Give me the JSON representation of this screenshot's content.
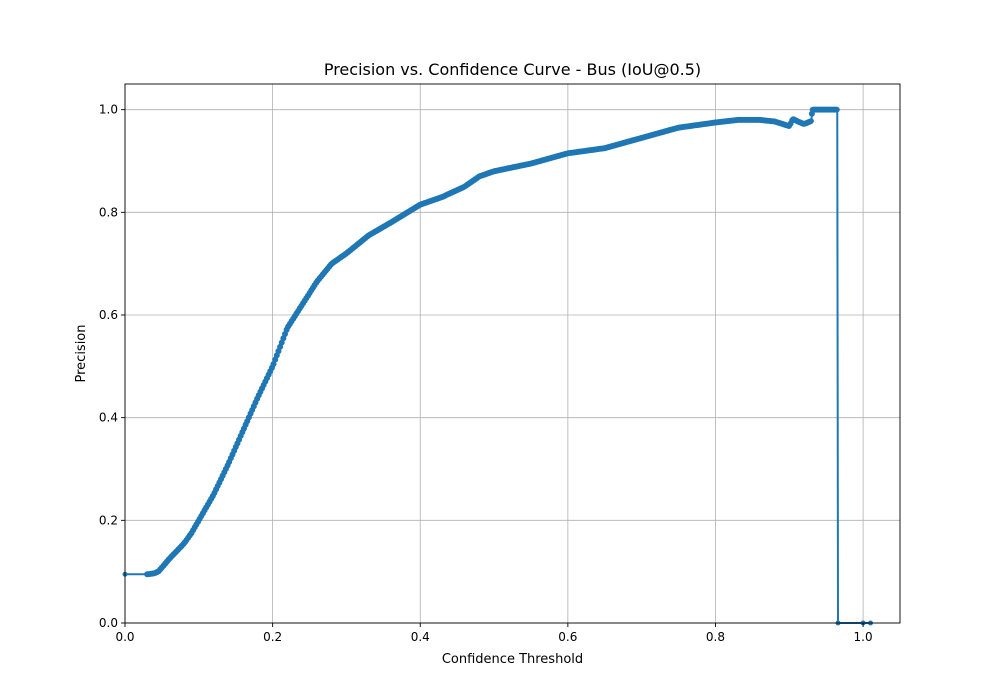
{
  "chart_data": {
    "type": "line",
    "title": "Precision vs. Confidence Curve - Bus (IoU@0.5)",
    "xlabel": "Confidence Threshold",
    "ylabel": "Precision",
    "xlim": [
      0.0,
      1.05
    ],
    "ylim": [
      0.0,
      1.05
    ],
    "grid": true,
    "color": "#1f77b4",
    "xticks": [
      0.0,
      0.2,
      0.4,
      0.6,
      0.8,
      1.0
    ],
    "yticks": [
      0.0,
      0.2,
      0.4,
      0.6,
      0.8,
      1.0
    ],
    "xtick_labels": [
      "0.0",
      "0.2",
      "0.4",
      "0.6",
      "0.8",
      "1.0"
    ],
    "ytick_labels": [
      "0.0",
      "0.2",
      "0.4",
      "0.6",
      "0.8",
      "1.0"
    ],
    "series": [
      {
        "name": "Precision",
        "x": [
          0.0,
          0.03,
          0.031,
          0.04,
          0.045,
          0.05,
          0.06,
          0.07,
          0.08,
          0.09,
          0.1,
          0.12,
          0.14,
          0.16,
          0.18,
          0.2,
          0.22,
          0.24,
          0.26,
          0.28,
          0.3,
          0.33,
          0.36,
          0.4,
          0.43,
          0.46,
          0.48,
          0.5,
          0.55,
          0.6,
          0.65,
          0.7,
          0.75,
          0.8,
          0.83,
          0.86,
          0.88,
          0.9,
          0.905,
          0.91,
          0.92,
          0.93,
          0.931,
          0.94,
          0.95,
          0.965,
          0.966,
          1.0,
          1.01
        ],
        "y": [
          0.095,
          0.095,
          0.095,
          0.097,
          0.1,
          0.108,
          0.125,
          0.14,
          0.155,
          0.175,
          0.2,
          0.25,
          0.31,
          0.375,
          0.44,
          0.5,
          0.575,
          0.62,
          0.665,
          0.7,
          0.72,
          0.755,
          0.78,
          0.815,
          0.83,
          0.85,
          0.87,
          0.88,
          0.895,
          0.915,
          0.925,
          0.945,
          0.965,
          0.975,
          0.98,
          0.98,
          0.977,
          0.968,
          0.982,
          0.978,
          0.972,
          0.978,
          1.0,
          1.0,
          1.0,
          1.0,
          0.0,
          0.0,
          0.0
        ]
      }
    ]
  }
}
